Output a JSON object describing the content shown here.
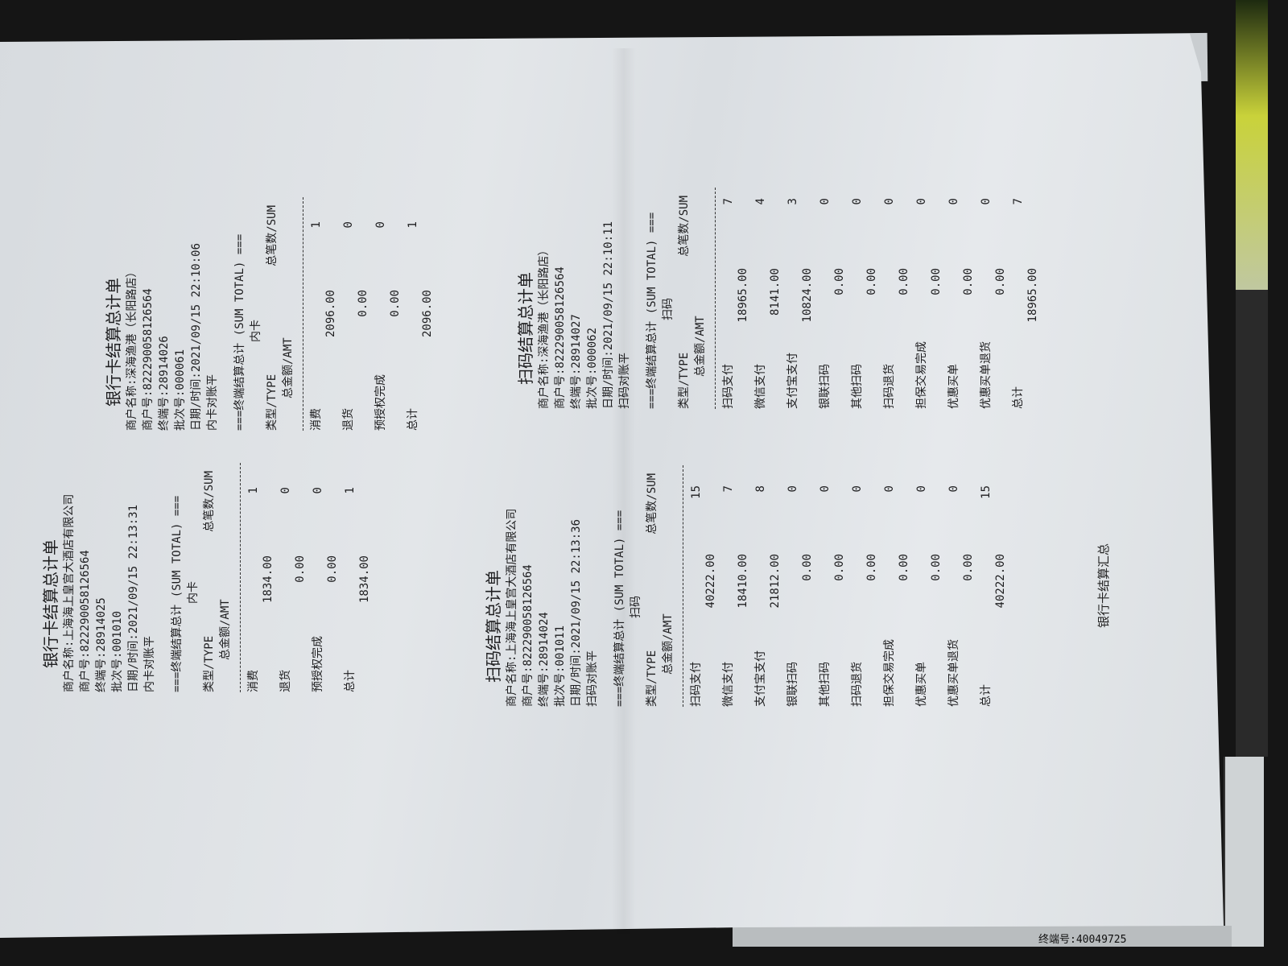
{
  "receipts": [
    {
      "title": "银行卡结算总计单",
      "merchant_name": "商户名称:上海海上皇宫大酒店有限公司",
      "merchant_no": "商户号:822290058126564",
      "terminal_no": "终端号:28914025",
      "batch_no": "批次号:001010",
      "datetime": "日期/时间:2021/09/15 22:13:31",
      "status": "内卡对账平",
      "sum_header": "===终端结算总计 (SUM TOTAL) ===",
      "section": "内卡",
      "col_type": "类型/TYPE",
      "col_amt": "总金额/AMT",
      "col_sum": "总笔数/SUM",
      "rows": [
        {
          "label": "消费",
          "amount": "1834.00",
          "count": "1"
        },
        {
          "label": "退货",
          "amount": "0.00",
          "count": "0"
        },
        {
          "label": "预授权完成",
          "amount": "0.00",
          "count": "0"
        },
        {
          "label": "总计",
          "amount": "1834.00",
          "count": "1"
        }
      ]
    },
    {
      "title": "银行卡结算总计单",
      "merchant_name": "商户名称:深海渔港（长阳路店）",
      "merchant_no": "商户号:822290058126564",
      "terminal_no": "终端号:28914026",
      "batch_no": "批次号:000061",
      "datetime": "日期/时间:2021/09/15 22:10:06",
      "status": "内卡对账平",
      "sum_header": "===终端结算总计 (SUM TOTAL) ===",
      "section": "内卡",
      "col_type": "类型/TYPE",
      "col_amt": "总金额/AMT",
      "col_sum": "总笔数/SUM",
      "rows": [
        {
          "label": "消费",
          "amount": "2096.00",
          "count": "1"
        },
        {
          "label": "退货",
          "amount": "0.00",
          "count": "0"
        },
        {
          "label": "预授权完成",
          "amount": "0.00",
          "count": "0"
        },
        {
          "label": "总计",
          "amount": "2096.00",
          "count": "1"
        }
      ]
    },
    {
      "title": "扫码结算总计单",
      "merchant_name": "商户名称:上海海上皇宫大酒店有限公司",
      "merchant_no": "商户号:822290058126564",
      "terminal_no": "终端号:28914024",
      "batch_no": "批次号:001011",
      "datetime": "日期/时间:2021/09/15 22:13:36",
      "status": "扫码对账平",
      "sum_header": "===终端结算总计 (SUM TOTAL) ===",
      "section": "扫码",
      "col_type": "类型/TYPE",
      "col_amt": "总金额/AMT",
      "col_sum": "总笔数/SUM",
      "rows": [
        {
          "label": "扫码支付",
          "amount": "40222.00",
          "count": "15"
        },
        {
          "label": "微信支付",
          "amount": "18410.00",
          "count": "7"
        },
        {
          "label": "支付宝支付",
          "amount": "21812.00",
          "count": "8"
        },
        {
          "label": "银联扫码",
          "amount": "0.00",
          "count": "0"
        },
        {
          "label": "其他扫码",
          "amount": "0.00",
          "count": "0"
        },
        {
          "label": "扫码退货",
          "amount": "0.00",
          "count": "0"
        },
        {
          "label": "担保交易完成",
          "amount": "0.00",
          "count": "0"
        },
        {
          "label": "优惠买单",
          "amount": "0.00",
          "count": "0"
        },
        {
          "label": "优惠买单退货",
          "amount": "0.00",
          "count": "0"
        },
        {
          "label": "总计",
          "amount": "40222.00",
          "count": "15"
        }
      ]
    },
    {
      "title": "扫码结算总计单",
      "merchant_name": "商户名称:深海渔港（长阳路店）",
      "merchant_no": "商户号:822290058126564",
      "terminal_no": "终端号:28914027",
      "batch_no": "批次号:000062",
      "datetime": "日期/时间:2021/09/15 22:10:11",
      "status": "扫码对账平",
      "sum_header": "===终端结算总计 (SUM TOTAL) ===",
      "section": "扫码",
      "col_type": "类型/TYPE",
      "col_amt": "总金额/AMT",
      "col_sum": "总笔数/SUM",
      "rows": [
        {
          "label": "扫码支付",
          "amount": "18965.00",
          "count": "7"
        },
        {
          "label": "微信支付",
          "amount": "8141.00",
          "count": "4"
        },
        {
          "label": "支付宝支付",
          "amount": "10824.00",
          "count": "3"
        },
        {
          "label": "银联扫码",
          "amount": "0.00",
          "count": "0"
        },
        {
          "label": "其他扫码",
          "amount": "0.00",
          "count": "0"
        },
        {
          "label": "扫码退货",
          "amount": "0.00",
          "count": "0"
        },
        {
          "label": "担保交易完成",
          "amount": "0.00",
          "count": "0"
        },
        {
          "label": "优惠买单",
          "amount": "0.00",
          "count": "0"
        },
        {
          "label": "优惠买单退货",
          "amount": "0.00",
          "count": "0"
        },
        {
          "label": "总计",
          "amount": "18965.00",
          "count": "7"
        }
      ]
    }
  ],
  "footer_text": "银行卡结算汇总",
  "background_receipt_text": "终端号:40049725"
}
